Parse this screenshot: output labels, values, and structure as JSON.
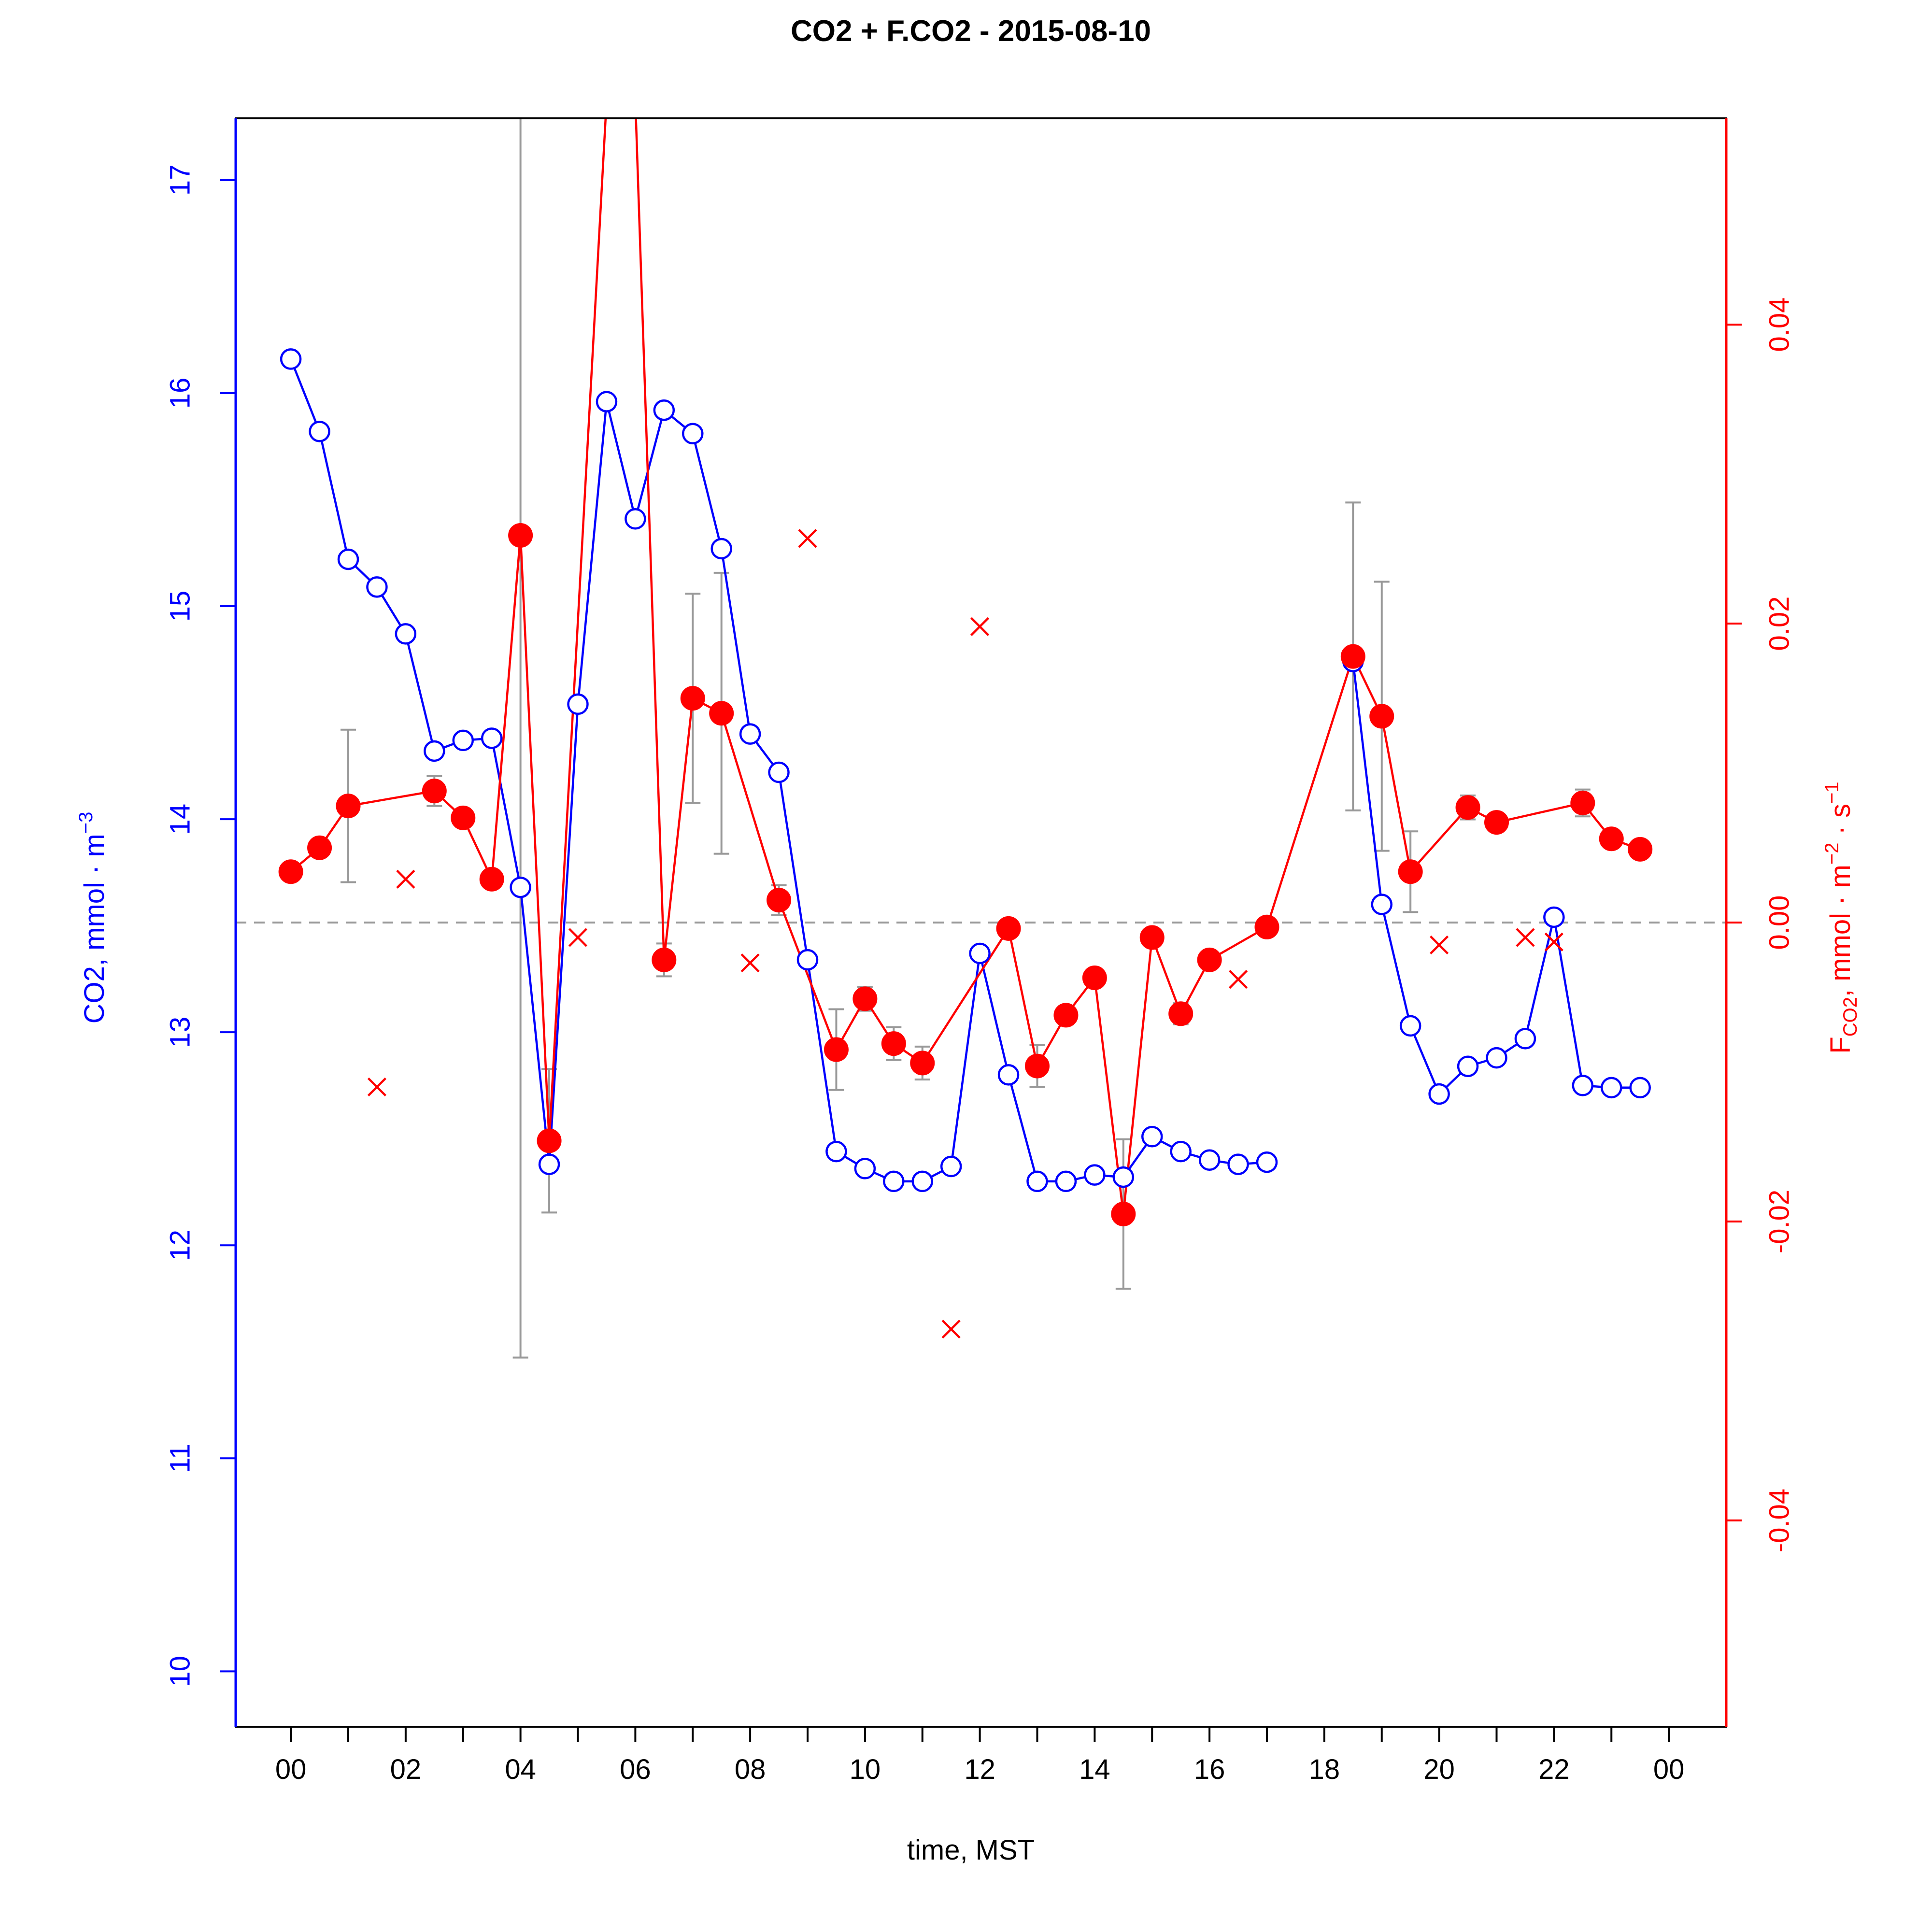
{
  "chart_data": {
    "type": "line",
    "title": "CO2 + F.CO2 -  2015-08-10",
    "xlabel": "time, MST",
    "ylabel_left": "CO2, mmol · m",
    "ylabel_left_sup": "−3",
    "ylabel_right_main": "F",
    "ylabel_right_sub": "CO2",
    "ylabel_right_rest": ", mmol · m",
    "ylabel_right_sup1": "−2",
    "ylabel_right_mid": " · s",
    "ylabel_right_sup2": "−1",
    "xlim": [
      -0.96,
      25.0
    ],
    "ylim_left": [
      9.74,
      17.29
    ],
    "ylim_right": [
      -0.0538,
      0.0538
    ],
    "x_ticks": [
      0,
      1,
      2,
      3,
      4,
      5,
      6,
      7,
      8,
      9,
      10,
      11,
      12,
      13,
      14,
      15,
      16,
      17,
      18,
      19,
      20,
      21,
      22,
      23,
      24
    ],
    "x_tick_labels": [
      "00",
      "02",
      "04",
      "06",
      "08",
      "10",
      "12",
      "14",
      "16",
      "18",
      "20",
      "22",
      "00"
    ],
    "x_tick_label_values": [
      0,
      2,
      4,
      6,
      8,
      10,
      12,
      14,
      16,
      18,
      20,
      22,
      24
    ],
    "y_left_ticks": [
      10,
      11,
      12,
      13,
      14,
      15,
      16,
      17
    ],
    "y_left_tick_labels": [
      "10",
      "11",
      "12",
      "13",
      "14",
      "15",
      "16",
      "17"
    ],
    "y_right_ticks": [
      -0.04,
      -0.02,
      0.0,
      0.02,
      0.04
    ],
    "y_right_tick_labels": [
      "-0.04",
      "-0.02",
      "0.00",
      "0.02",
      "0.04"
    ],
    "reference_line_right": 0.0,
    "colors": {
      "co2": "#0000ff",
      "flux": "#ff0000",
      "error_bar": "#999999",
      "reference": "#999999",
      "frame": "#000000"
    },
    "series": [
      {
        "axis": "left",
        "style": "line+open-circle",
        "x": [
          0,
          0.5,
          1,
          1.5,
          2,
          2.5,
          3,
          3.5,
          4,
          4.5,
          5,
          5.5,
          6,
          6.5,
          7,
          7.5,
          8,
          8.5,
          9,
          9.5,
          10,
          10.5,
          11,
          11.5,
          12,
          12.5,
          13,
          13.5,
          14,
          14.5,
          15,
          15.5,
          16,
          16.5,
          17,
          18.5,
          19,
          19.5,
          20,
          20.5,
          21,
          21.5,
          22,
          22.5,
          23,
          23.5
        ],
        "y": [
          16.16,
          15.82,
          15.22,
          15.09,
          14.87,
          14.32,
          14.37,
          14.38,
          13.68,
          12.38,
          14.54,
          15.96,
          15.41,
          15.92,
          15.81,
          15.27,
          14.4,
          14.22,
          13.34,
          12.44,
          12.36,
          12.3,
          12.3,
          12.37,
          13.37,
          12.8,
          12.3,
          12.3,
          12.33,
          12.32,
          12.51,
          12.44,
          12.4,
          12.38,
          12.39,
          14.74,
          13.6,
          13.03,
          12.71,
          12.84,
          12.88,
          12.97,
          13.54,
          12.75,
          12.74,
          12.74
        ]
      },
      {
        "axis": "right",
        "style": "line+filled-circle",
        "x": [
          0,
          0.5,
          1,
          2.5,
          3,
          3.5,
          4,
          4.5,
          5.5,
          6,
          6.5,
          7,
          7.5,
          8.5,
          9.5,
          10,
          10.5,
          11,
          12.5,
          13,
          13.5,
          14,
          14.5,
          15,
          15.5,
          16,
          17,
          18.5,
          19,
          19.5,
          20.5,
          21,
          22.5,
          23,
          23.5
        ],
        "y": [
          0.0034,
          0.005,
          0.0078,
          0.0088,
          0.007,
          0.0029,
          0.0259,
          -0.0146,
          0.055,
          0.055,
          -0.0025,
          0.015,
          0.014,
          0.0015,
          -0.0085,
          -0.0051,
          -0.0081,
          -0.0094,
          -0.0004,
          -0.0096,
          -0.0062,
          -0.0037,
          -0.0195,
          -0.001,
          -0.0061,
          -0.0025,
          -0.0003,
          0.0178,
          0.0138,
          0.0034,
          0.0077,
          0.0067,
          0.008,
          0.0056,
          0.0049
        ],
        "error": [
          0.0004,
          0.0005,
          0.0051,
          0.001,
          0.0006,
          0.0003,
          0.055,
          0.0048,
          0.0,
          0.0,
          0.0011,
          0.007,
          0.0094,
          0.001,
          0.0027,
          0.0008,
          0.0011,
          0.0011,
          0.0003,
          0.0014,
          0.0006,
          0.0004,
          0.005,
          0.0,
          0.0007,
          0.0003,
          0.0,
          0.0103,
          0.009,
          0.0027,
          0.0008,
          0.0005,
          0.0009,
          0.0006,
          0.0005
        ]
      },
      {
        "axis": "right",
        "style": "cross-markers",
        "x": [
          1.5,
          2,
          5,
          8,
          9,
          11.5,
          12,
          16.5,
          20,
          21.5,
          22
        ],
        "y": [
          -0.011,
          0.0029,
          -0.001,
          -0.0027,
          0.0257,
          -0.0272,
          0.0198,
          -0.0038,
          -0.0015,
          -0.001,
          -0.0013
        ]
      }
    ],
    "grid": false,
    "legend": "none"
  }
}
